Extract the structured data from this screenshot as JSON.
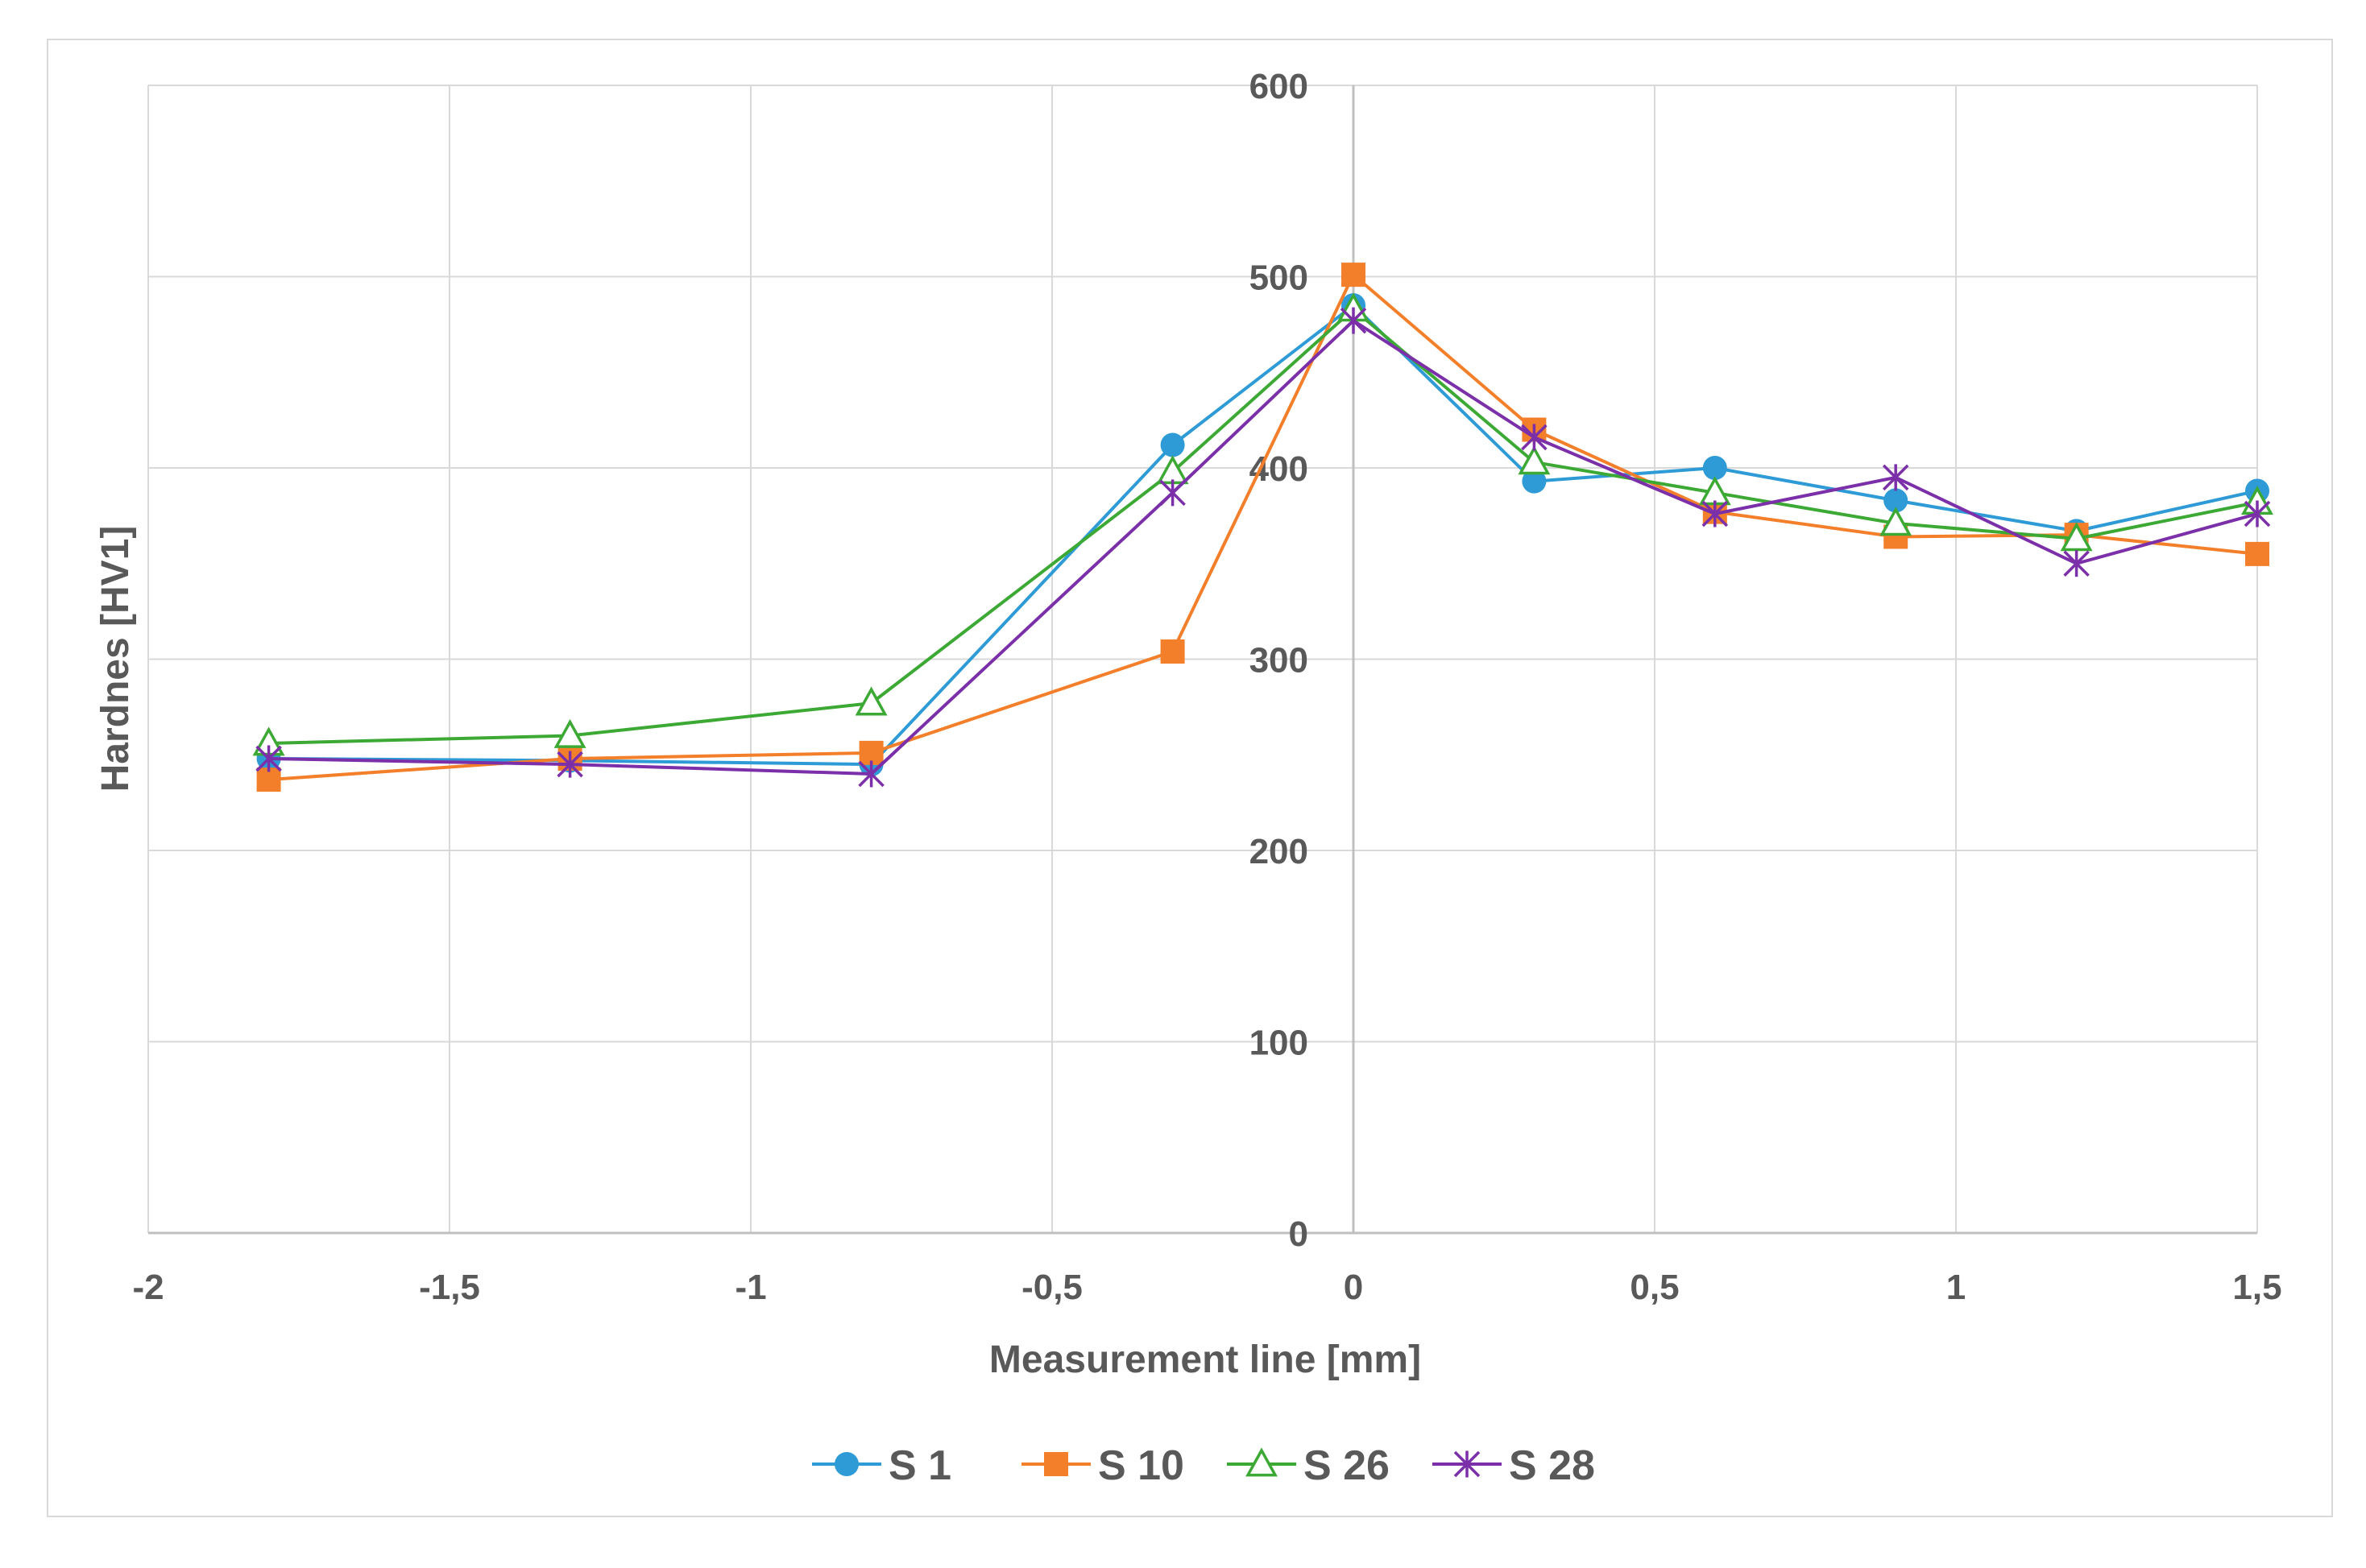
{
  "chart_data": {
    "type": "line",
    "title": "",
    "xlabel": "Measurement line [mm]",
    "ylabel": "Hardnes [HV1]",
    "xlim": [
      -2,
      1.5
    ],
    "ylim": [
      0,
      600
    ],
    "x_ticks": [
      -2,
      -1.5,
      -1,
      -0.5,
      0,
      0.5,
      1,
      1.5
    ],
    "x_tick_labels": [
      "-2",
      "-1,5",
      "-1",
      "-0,5",
      "0",
      "0,5",
      "1",
      "1,5"
    ],
    "y_ticks": [
      0,
      100,
      200,
      300,
      400,
      500,
      600
    ],
    "y_tick_labels": [
      "0",
      "100",
      "200",
      "300",
      "400",
      "500",
      "600"
    ],
    "grid": true,
    "legend_position": "bottom",
    "x": [
      -1.8,
      -1.3,
      -0.8,
      -0.3,
      0,
      0.3,
      0.6,
      0.9,
      1.2,
      1.5
    ],
    "series": [
      {
        "name": "S 1",
        "color": "#2e9bd6",
        "marker": "circle",
        "values": [
          248,
          247,
          245,
          412,
          485,
          393,
          400,
          383,
          367,
          388
        ]
      },
      {
        "name": "S 10",
        "color": "#f47f2a",
        "marker": "square",
        "values": [
          237,
          248,
          251,
          304,
          501,
          420,
          377,
          364,
          365,
          355
        ]
      },
      {
        "name": "S 26",
        "color": "#3da935",
        "marker": "triangle",
        "values": [
          256,
          260,
          277,
          398,
          483,
          403,
          387,
          371,
          363,
          382
        ]
      },
      {
        "name": "S 28",
        "color": "#7b2fa8",
        "marker": "asterisk",
        "values": [
          248,
          245,
          240,
          387,
          477,
          416,
          376,
          395,
          350,
          376
        ]
      }
    ]
  }
}
